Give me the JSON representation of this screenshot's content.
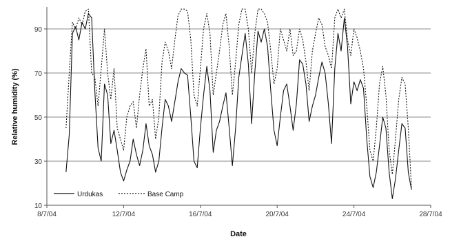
{
  "chart_data": {
    "type": "line",
    "title": "",
    "xlabel": "Date",
    "ylabel": "Relative humidity (%)",
    "xlim": [
      "2004-07-08",
      "2004-07-28"
    ],
    "ylim": [
      10,
      100
    ],
    "x_ticks": [
      "8/7/04",
      "12/7/04",
      "16/7/04",
      "20/7/04",
      "24/7/04",
      "28/7/04"
    ],
    "y_ticks": [
      10,
      30,
      50,
      70,
      90
    ],
    "grid": "horizontal",
    "legend_position": "bottom-left",
    "series": [
      {
        "name": "Urdukas",
        "style": "solid",
        "color": "#111111",
        "points": [
          [
            "2004-07-09 00:00",
            25
          ],
          [
            "2004-07-09 04:00",
            42
          ],
          [
            "2004-07-09 08:00",
            88
          ],
          [
            "2004-07-09 12:00",
            91
          ],
          [
            "2004-07-09 16:00",
            85
          ],
          [
            "2004-07-09 20:00",
            93
          ],
          [
            "2004-07-10 00:00",
            90
          ],
          [
            "2004-07-10 04:00",
            97
          ],
          [
            "2004-07-10 08:00",
            95
          ],
          [
            "2004-07-10 12:00",
            62
          ],
          [
            "2004-07-10 16:00",
            36
          ],
          [
            "2004-07-10 20:00",
            30
          ],
          [
            "2004-07-11 00:00",
            65
          ],
          [
            "2004-07-11 04:00",
            60
          ],
          [
            "2004-07-11 08:00",
            38
          ],
          [
            "2004-07-11 12:00",
            44
          ],
          [
            "2004-07-11 16:00",
            35
          ],
          [
            "2004-07-11 20:00",
            25
          ],
          [
            "2004-07-12 00:00",
            21
          ],
          [
            "2004-07-12 04:00",
            26
          ],
          [
            "2004-07-12 08:00",
            30
          ],
          [
            "2004-07-12 12:00",
            40
          ],
          [
            "2004-07-12 16:00",
            33
          ],
          [
            "2004-07-12 20:00",
            28
          ],
          [
            "2004-07-13 00:00",
            35
          ],
          [
            "2004-07-13 04:00",
            47
          ],
          [
            "2004-07-13 08:00",
            37
          ],
          [
            "2004-07-13 12:00",
            33
          ],
          [
            "2004-07-13 16:00",
            25
          ],
          [
            "2004-07-13 20:00",
            30
          ],
          [
            "2004-07-14 00:00",
            45
          ],
          [
            "2004-07-14 04:00",
            58
          ],
          [
            "2004-07-14 08:00",
            55
          ],
          [
            "2004-07-14 12:00",
            48
          ],
          [
            "2004-07-14 16:00",
            57
          ],
          [
            "2004-07-14 20:00",
            66
          ],
          [
            "2004-07-15 00:00",
            72
          ],
          [
            "2004-07-15 04:00",
            70
          ],
          [
            "2004-07-15 08:00",
            69
          ],
          [
            "2004-07-15 12:00",
            50
          ],
          [
            "2004-07-15 16:00",
            30
          ],
          [
            "2004-07-15 20:00",
            27
          ],
          [
            "2004-07-16 00:00",
            45
          ],
          [
            "2004-07-16 04:00",
            60
          ],
          [
            "2004-07-16 08:00",
            73
          ],
          [
            "2004-07-16 12:00",
            62
          ],
          [
            "2004-07-16 16:00",
            34
          ],
          [
            "2004-07-16 20:00",
            44
          ],
          [
            "2004-07-17 00:00",
            48
          ],
          [
            "2004-07-17 04:00",
            55
          ],
          [
            "2004-07-17 08:00",
            61
          ],
          [
            "2004-07-17 12:00",
            45
          ],
          [
            "2004-07-17 16:00",
            28
          ],
          [
            "2004-07-17 20:00",
            45
          ],
          [
            "2004-07-18 00:00",
            68
          ],
          [
            "2004-07-18 04:00",
            78
          ],
          [
            "2004-07-18 08:00",
            88
          ],
          [
            "2004-07-18 12:00",
            74
          ],
          [
            "2004-07-18 16:00",
            47
          ],
          [
            "2004-07-18 20:00",
            70
          ],
          [
            "2004-07-19 00:00",
            89
          ],
          [
            "2004-07-19 04:00",
            84
          ],
          [
            "2004-07-19 08:00",
            90
          ],
          [
            "2004-07-19 12:00",
            82
          ],
          [
            "2004-07-19 16:00",
            62
          ],
          [
            "2004-07-19 20:00",
            44
          ],
          [
            "2004-07-20 00:00",
            37
          ],
          [
            "2004-07-20 04:00",
            50
          ],
          [
            "2004-07-20 08:00",
            62
          ],
          [
            "2004-07-20 12:00",
            65
          ],
          [
            "2004-07-20 16:00",
            55
          ],
          [
            "2004-07-20 20:00",
            44
          ],
          [
            "2004-07-21 00:00",
            56
          ],
          [
            "2004-07-21 04:00",
            76
          ],
          [
            "2004-07-21 08:00",
            74
          ],
          [
            "2004-07-21 12:00",
            65
          ],
          [
            "2004-07-21 16:00",
            48
          ],
          [
            "2004-07-21 20:00",
            55
          ],
          [
            "2004-07-22 00:00",
            60
          ],
          [
            "2004-07-22 04:00",
            68
          ],
          [
            "2004-07-22 08:00",
            75
          ],
          [
            "2004-07-22 12:00",
            70
          ],
          [
            "2004-07-22 16:00",
            56
          ],
          [
            "2004-07-22 20:00",
            38
          ],
          [
            "2004-07-23 00:00",
            72
          ],
          [
            "2004-07-23 04:00",
            88
          ],
          [
            "2004-07-23 08:00",
            80
          ],
          [
            "2004-07-23 12:00",
            95
          ],
          [
            "2004-07-23 16:00",
            82
          ],
          [
            "2004-07-23 20:00",
            56
          ],
          [
            "2004-07-24 00:00",
            66
          ],
          [
            "2004-07-24 04:00",
            62
          ],
          [
            "2004-07-24 08:00",
            67
          ],
          [
            "2004-07-24 12:00",
            63
          ],
          [
            "2004-07-24 16:00",
            40
          ],
          [
            "2004-07-24 20:00",
            23
          ],
          [
            "2004-07-25 00:00",
            18
          ],
          [
            "2004-07-25 04:00",
            25
          ],
          [
            "2004-07-25 08:00",
            37
          ],
          [
            "2004-07-25 12:00",
            50
          ],
          [
            "2004-07-25 16:00",
            45
          ],
          [
            "2004-07-25 20:00",
            25
          ],
          [
            "2004-07-26 00:00",
            13
          ],
          [
            "2004-07-26 04:00",
            22
          ],
          [
            "2004-07-26 08:00",
            35
          ],
          [
            "2004-07-26 12:00",
            47
          ],
          [
            "2004-07-26 16:00",
            45
          ],
          [
            "2004-07-26 20:00",
            25
          ],
          [
            "2004-07-27 00:00",
            17
          ]
        ]
      },
      {
        "name": "Base Camp",
        "style": "dotted",
        "color": "#111111",
        "points": [
          [
            "2004-07-09 00:00",
            45
          ],
          [
            "2004-07-09 04:00",
            70
          ],
          [
            "2004-07-09 08:00",
            93
          ],
          [
            "2004-07-09 12:00",
            90
          ],
          [
            "2004-07-09 16:00",
            95
          ],
          [
            "2004-07-09 20:00",
            92
          ],
          [
            "2004-07-10 00:00",
            98
          ],
          [
            "2004-07-10 04:00",
            99
          ],
          [
            "2004-07-10 08:00",
            70
          ],
          [
            "2004-07-10 12:00",
            68
          ],
          [
            "2004-07-10 16:00",
            55
          ],
          [
            "2004-07-10 20:00",
            72
          ],
          [
            "2004-07-11 00:00",
            90
          ],
          [
            "2004-07-11 04:00",
            70
          ],
          [
            "2004-07-11 08:00",
            58
          ],
          [
            "2004-07-11 12:00",
            72
          ],
          [
            "2004-07-11 16:00",
            45
          ],
          [
            "2004-07-11 20:00",
            40
          ],
          [
            "2004-07-12 00:00",
            35
          ],
          [
            "2004-07-12 04:00",
            50
          ],
          [
            "2004-07-12 08:00",
            55
          ],
          [
            "2004-07-12 12:00",
            57
          ],
          [
            "2004-07-12 16:00",
            45
          ],
          [
            "2004-07-12 20:00",
            60
          ],
          [
            "2004-07-13 00:00",
            72
          ],
          [
            "2004-07-13 04:00",
            81
          ],
          [
            "2004-07-13 08:00",
            55
          ],
          [
            "2004-07-13 12:00",
            58
          ],
          [
            "2004-07-13 16:00",
            40
          ],
          [
            "2004-07-13 20:00",
            50
          ],
          [
            "2004-07-14 00:00",
            75
          ],
          [
            "2004-07-14 04:00",
            84
          ],
          [
            "2004-07-14 08:00",
            80
          ],
          [
            "2004-07-14 12:00",
            72
          ],
          [
            "2004-07-14 16:00",
            85
          ],
          [
            "2004-07-14 20:00",
            96
          ],
          [
            "2004-07-15 00:00",
            99
          ],
          [
            "2004-07-15 04:00",
            99
          ],
          [
            "2004-07-15 08:00",
            98
          ],
          [
            "2004-07-15 12:00",
            85
          ],
          [
            "2004-07-15 16:00",
            60
          ],
          [
            "2004-07-15 20:00",
            55
          ],
          [
            "2004-07-16 00:00",
            72
          ],
          [
            "2004-07-16 04:00",
            90
          ],
          [
            "2004-07-16 08:00",
            97
          ],
          [
            "2004-07-16 12:00",
            88
          ],
          [
            "2004-07-16 16:00",
            60
          ],
          [
            "2004-07-16 20:00",
            70
          ],
          [
            "2004-07-17 00:00",
            80
          ],
          [
            "2004-07-17 04:00",
            92
          ],
          [
            "2004-07-17 08:00",
            97
          ],
          [
            "2004-07-17 12:00",
            82
          ],
          [
            "2004-07-17 16:00",
            60
          ],
          [
            "2004-07-17 20:00",
            75
          ],
          [
            "2004-07-18 00:00",
            92
          ],
          [
            "2004-07-18 04:00",
            99
          ],
          [
            "2004-07-18 08:00",
            99
          ],
          [
            "2004-07-18 12:00",
            90
          ],
          [
            "2004-07-18 16:00",
            70
          ],
          [
            "2004-07-18 20:00",
            88
          ],
          [
            "2004-07-19 00:00",
            99
          ],
          [
            "2004-07-19 04:00",
            99
          ],
          [
            "2004-07-19 08:00",
            97
          ],
          [
            "2004-07-19 12:00",
            93
          ],
          [
            "2004-07-19 16:00",
            80
          ],
          [
            "2004-07-19 20:00",
            65
          ],
          [
            "2004-07-20 00:00",
            72
          ],
          [
            "2004-07-20 04:00",
            90
          ],
          [
            "2004-07-20 08:00",
            85
          ],
          [
            "2004-07-20 12:00",
            80
          ],
          [
            "2004-07-20 16:00",
            90
          ],
          [
            "2004-07-20 20:00",
            78
          ],
          [
            "2004-07-21 00:00",
            80
          ],
          [
            "2004-07-21 04:00",
            90
          ],
          [
            "2004-07-21 08:00",
            85
          ],
          [
            "2004-07-21 12:00",
            75
          ],
          [
            "2004-07-21 16:00",
            62
          ],
          [
            "2004-07-21 20:00",
            80
          ],
          [
            "2004-07-22 00:00",
            88
          ],
          [
            "2004-07-22 04:00",
            95
          ],
          [
            "2004-07-22 08:00",
            92
          ],
          [
            "2004-07-22 12:00",
            82
          ],
          [
            "2004-07-22 16:00",
            78
          ],
          [
            "2004-07-22 20:00",
            72
          ],
          [
            "2004-07-23 00:00",
            95
          ],
          [
            "2004-07-23 04:00",
            99
          ],
          [
            "2004-07-23 08:00",
            95
          ],
          [
            "2004-07-23 12:00",
            99
          ],
          [
            "2004-07-23 16:00",
            85
          ],
          [
            "2004-07-23 20:00",
            78
          ],
          [
            "2004-07-24 00:00",
            90
          ],
          [
            "2004-07-24 04:00",
            86
          ],
          [
            "2004-07-24 08:00",
            80
          ],
          [
            "2004-07-24 12:00",
            72
          ],
          [
            "2004-07-24 16:00",
            55
          ],
          [
            "2004-07-24 20:00",
            35
          ],
          [
            "2004-07-25 00:00",
            30
          ],
          [
            "2004-07-25 04:00",
            45
          ],
          [
            "2004-07-25 08:00",
            65
          ],
          [
            "2004-07-25 12:00",
            73
          ],
          [
            "2004-07-25 16:00",
            60
          ],
          [
            "2004-07-25 20:00",
            35
          ],
          [
            "2004-07-26 00:00",
            24
          ],
          [
            "2004-07-26 04:00",
            40
          ],
          [
            "2004-07-26 08:00",
            58
          ],
          [
            "2004-07-26 12:00",
            68
          ],
          [
            "2004-07-26 16:00",
            65
          ],
          [
            "2004-07-26 20:00",
            45
          ],
          [
            "2004-07-27 00:00",
            18
          ]
        ]
      }
    ]
  }
}
